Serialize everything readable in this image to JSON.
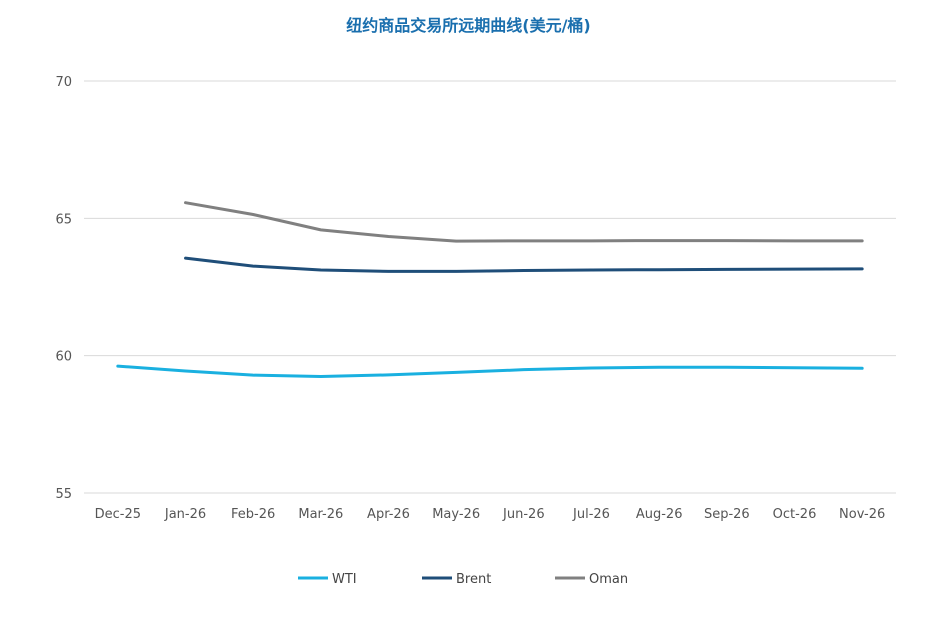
{
  "chart_data": {
    "type": "line",
    "title": "纽约商品交易所远期曲线(美元/桶)",
    "categories": [
      "Dec-25",
      "Jan-26",
      "Feb-26",
      "Mar-26",
      "Apr-26",
      "May-26",
      "Jun-26",
      "Jul-26",
      "Aug-26",
      "Sep-26",
      "Oct-26",
      "Nov-26"
    ],
    "yticks": [
      "55",
      "60",
      "65",
      "70"
    ],
    "ylim": [
      55,
      70
    ],
    "grid": true,
    "legend_position": "bottom",
    "series": [
      {
        "name": "WTI",
        "color": "#1ab0e0",
        "values": [
          59.62,
          59.44,
          59.29,
          59.24,
          59.3,
          59.39,
          59.49,
          59.55,
          59.58,
          59.58,
          59.56,
          59.54
        ]
      },
      {
        "name": "Brent",
        "color": "#1f4e79",
        "values": [
          null,
          63.55,
          63.26,
          63.12,
          63.07,
          63.07,
          63.1,
          63.12,
          63.13,
          63.14,
          63.15,
          63.16
        ]
      },
      {
        "name": "Oman",
        "color": "#808080",
        "values": [
          null,
          65.57,
          65.14,
          64.58,
          64.34,
          64.17,
          64.18,
          64.18,
          64.19,
          64.19,
          64.18,
          64.18
        ]
      }
    ]
  }
}
